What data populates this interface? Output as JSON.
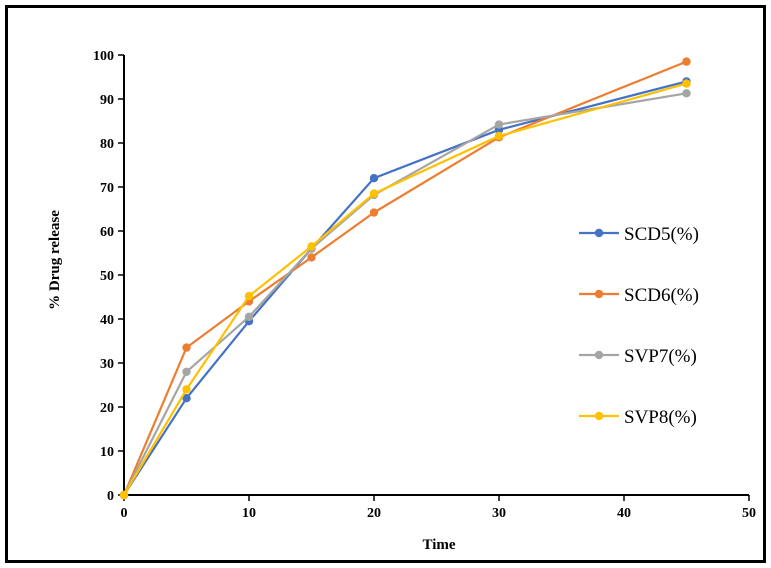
{
  "chart_data": {
    "type": "line",
    "title": "",
    "xlabel": "Time",
    "ylabel": "% Drug release",
    "xlim": [
      0,
      50
    ],
    "ylim": [
      0,
      100
    ],
    "x_ticks": [
      0,
      10,
      20,
      30,
      40,
      50
    ],
    "y_ticks": [
      0,
      10,
      20,
      30,
      40,
      50,
      60,
      70,
      80,
      90,
      100
    ],
    "grid": false,
    "legend_position": "right",
    "series": [
      {
        "name": "SCD5(%)",
        "color": "#4472c4",
        "points": [
          [
            0,
            0
          ],
          [
            5,
            22
          ],
          [
            10,
            39.5
          ],
          [
            15,
            56
          ],
          [
            20,
            72
          ],
          [
            30,
            83
          ],
          [
            45,
            94
          ]
        ]
      },
      {
        "name": "SCD6(%)",
        "color": "#ed7d31",
        "points": [
          [
            0,
            0
          ],
          [
            5,
            33.5
          ],
          [
            10,
            44
          ],
          [
            15,
            54
          ],
          [
            20,
            64.2
          ],
          [
            30,
            81.3
          ],
          [
            45,
            98.5
          ]
        ]
      },
      {
        "name": "SVP7(%)",
        "color": "#a5a5a5",
        "points": [
          [
            0,
            0
          ],
          [
            5,
            28
          ],
          [
            10,
            40.5
          ],
          [
            15,
            56
          ],
          [
            20,
            68.2
          ],
          [
            30,
            84.2
          ],
          [
            45,
            91.3
          ]
        ]
      },
      {
        "name": "SVP8(%)",
        "color": "#ffc000",
        "points": [
          [
            0,
            0
          ],
          [
            5,
            24
          ],
          [
            10,
            45.2
          ],
          [
            15,
            56.5
          ],
          [
            20,
            68.5
          ],
          [
            30,
            81.6
          ],
          [
            45,
            93.5
          ]
        ]
      }
    ]
  }
}
